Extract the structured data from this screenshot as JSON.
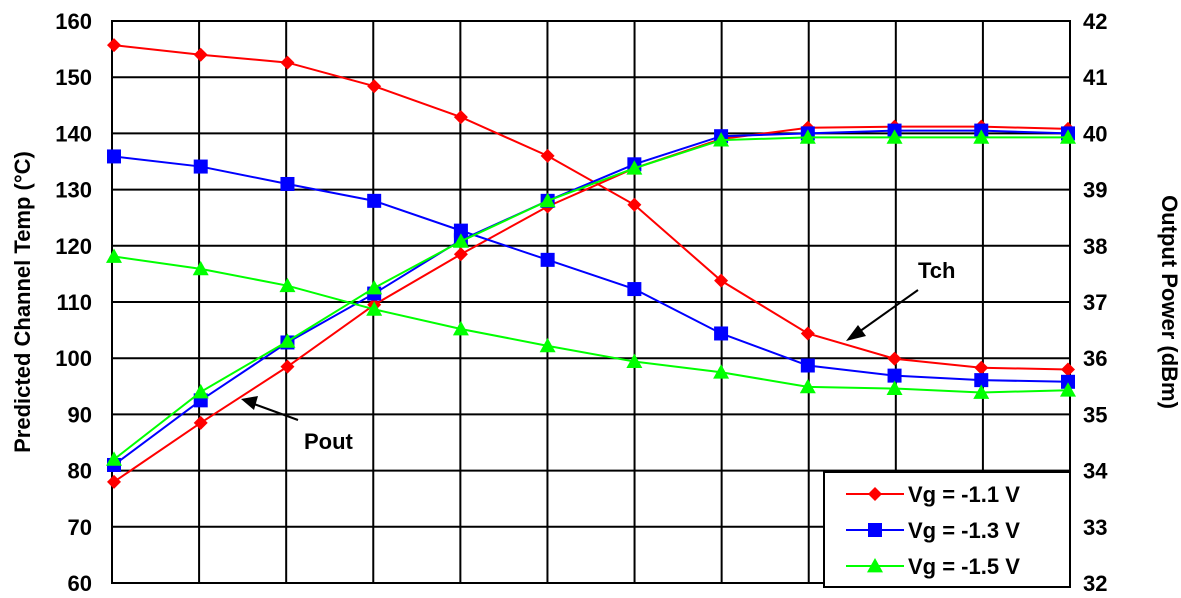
{
  "chart_data": {
    "type": "line",
    "x_count": 12,
    "left_axis": {
      "label": "Predicted Channel Temp (°C)",
      "ylim": [
        60,
        160
      ],
      "ticks": [
        "160",
        "150",
        "140",
        "130",
        "120",
        "110",
        "100",
        "90",
        "80",
        "70",
        "60"
      ]
    },
    "right_axis": {
      "label": "Output Power (dBm)",
      "ylim": [
        32,
        42
      ],
      "ticks": [
        "42",
        "41",
        "40",
        "39",
        "38",
        "37",
        "36",
        "35",
        "34",
        "33",
        "32"
      ]
    },
    "grid": true,
    "legend": "bottom-right",
    "series": [
      {
        "name": "Vg = -1.1 V",
        "color": "#ff0000",
        "marker": "diamond",
        "tch": [
          155.7,
          154.0,
          152.6,
          148.4,
          142.9,
          136.0,
          127.3,
          113.8,
          104.4,
          99.9,
          98.3,
          98.0
        ],
        "pout": [
          33.8,
          34.85,
          35.85,
          36.95,
          37.85,
          38.7,
          39.38,
          39.9,
          40.1,
          40.12,
          40.12,
          40.08
        ]
      },
      {
        "name": "Vg = -1.3 V",
        "color": "#0000ff",
        "marker": "square",
        "tch": [
          135.9,
          134.1,
          131.0,
          128.0,
          122.7,
          117.5,
          112.3,
          104.4,
          98.7,
          96.9,
          96.1,
          95.8
        ],
        "pout": [
          34.1,
          35.25,
          36.28,
          37.15,
          38.1,
          38.8,
          39.45,
          39.95,
          40.0,
          40.05,
          40.05,
          40.0
        ]
      },
      {
        "name": "Vg = -1.5 V",
        "color": "#00ff00",
        "marker": "triangle",
        "tch": [
          118.1,
          115.9,
          112.9,
          108.7,
          105.2,
          102.2,
          99.4,
          97.5,
          94.9,
          94.6,
          93.9,
          94.3
        ],
        "pout": [
          34.2,
          35.4,
          36.3,
          37.25,
          38.08,
          38.8,
          39.38,
          39.88,
          39.93,
          39.93,
          39.93,
          39.93
        ]
      }
    ],
    "annotations": [
      {
        "text": "Tch"
      },
      {
        "text": "Pout"
      }
    ]
  }
}
